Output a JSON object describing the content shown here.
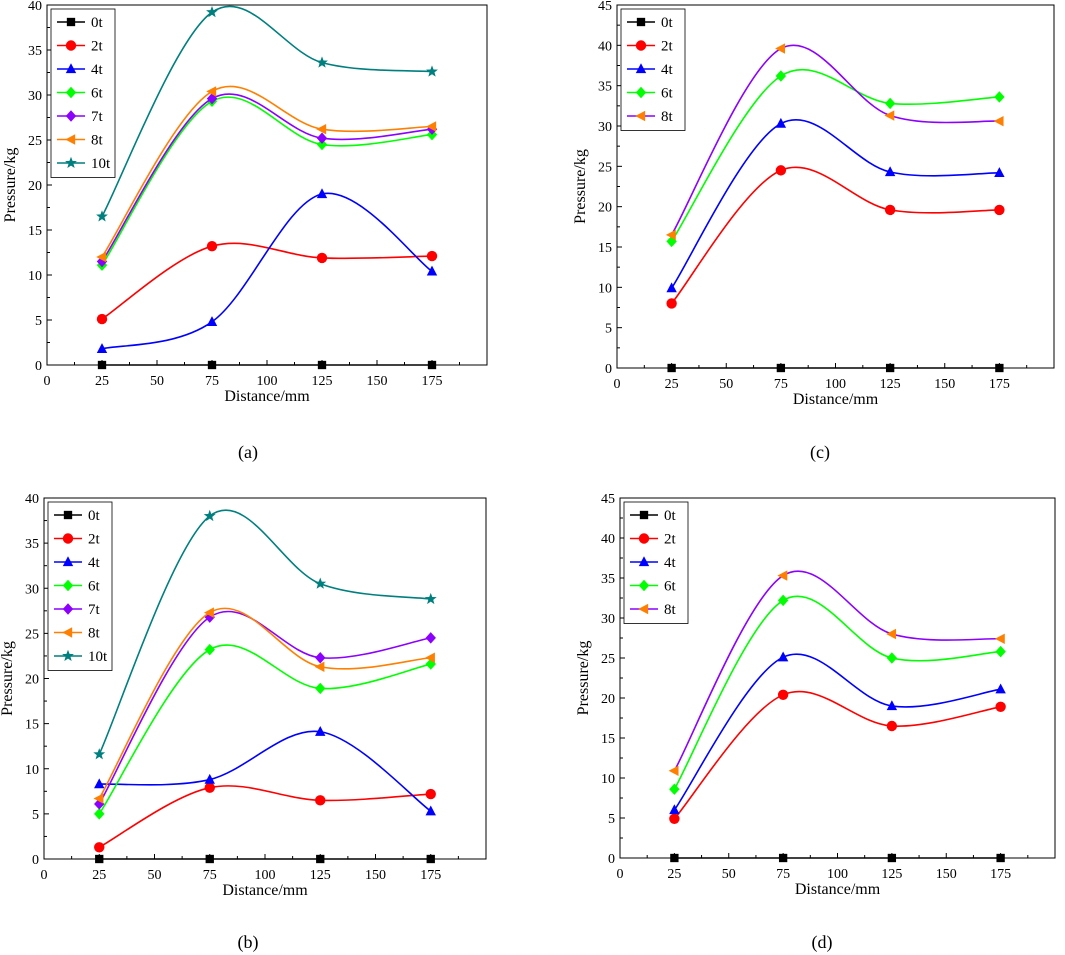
{
  "colors": {
    "0t": "#000000",
    "2t": "#ff0000",
    "4t": "#0000ff",
    "6t": "#00ff00",
    "7t": "#8b00ff",
    "8t": "#ff7f00",
    "10t": "#007f7f",
    "axis": "#000000"
  },
  "chart_data": [
    {
      "id": "a",
      "type": "line",
      "caption": "(a)",
      "xlabel": "Distance/mm",
      "ylabel": "Pressure/kg",
      "xlim": [
        0,
        200
      ],
      "ylim": [
        0,
        40
      ],
      "xticks": [
        0,
        25,
        50,
        75,
        100,
        125,
        150,
        175
      ],
      "yticks": [
        0,
        5,
        10,
        15,
        20,
        25,
        30,
        35,
        40
      ],
      "x": [
        25,
        75,
        125,
        175
      ],
      "legend_position": "top-left",
      "series": [
        {
          "name": "0t",
          "marker": "square",
          "values": [
            0,
            0,
            0,
            0
          ]
        },
        {
          "name": "2t",
          "marker": "circle",
          "values": [
            5.1,
            13.2,
            11.9,
            12.1
          ]
        },
        {
          "name": "4t",
          "marker": "triangle-up",
          "values": [
            1.8,
            4.8,
            19.0,
            10.4
          ]
        },
        {
          "name": "6t",
          "marker": "diamond",
          "values": [
            11.1,
            29.3,
            24.5,
            25.6
          ]
        },
        {
          "name": "7t",
          "marker": "diamond",
          "values": [
            11.5,
            29.6,
            25.2,
            26.2
          ]
        },
        {
          "name": "8t",
          "marker": "triangle-left",
          "values": [
            12.0,
            30.4,
            26.2,
            26.5
          ]
        },
        {
          "name": "10t",
          "marker": "star",
          "values": [
            16.5,
            39.2,
            33.6,
            32.6
          ]
        }
      ]
    },
    {
      "id": "c",
      "type": "line",
      "caption": "(c)",
      "xlabel": "Distance/mm",
      "ylabel": "Pressure/kg",
      "xlim": [
        0,
        200
      ],
      "ylim": [
        0,
        45
      ],
      "xticks": [
        0,
        25,
        50,
        75,
        100,
        125,
        150,
        175
      ],
      "yticks": [
        0,
        5,
        10,
        15,
        20,
        25,
        30,
        35,
        40,
        45
      ],
      "x": [
        25,
        75,
        125,
        175
      ],
      "legend_position": "top-left",
      "series": [
        {
          "name": "0t",
          "marker": "square",
          "values": [
            0,
            0,
            0,
            0
          ]
        },
        {
          "name": "2t",
          "marker": "circle",
          "values": [
            8.0,
            24.5,
            19.6,
            19.6
          ]
        },
        {
          "name": "4t",
          "marker": "triangle-up",
          "values": [
            9.9,
            30.3,
            24.3,
            24.2
          ]
        },
        {
          "name": "6t",
          "marker": "diamond",
          "values": [
            15.7,
            36.2,
            32.8,
            33.6
          ]
        },
        {
          "name": "8t",
          "marker": "triangle-left",
          "values": [
            16.5,
            39.6,
            31.3,
            30.6
          ],
          "line_color": "#8b00ff"
        }
      ]
    },
    {
      "id": "b",
      "type": "line",
      "caption": "(b)",
      "xlabel": "Distance/mm",
      "ylabel": "Pressure/kg",
      "xlim": [
        0,
        200
      ],
      "ylim": [
        0,
        40
      ],
      "xticks": [
        0,
        25,
        50,
        75,
        100,
        125,
        150,
        175
      ],
      "yticks": [
        0,
        5,
        10,
        15,
        20,
        25,
        30,
        35,
        40
      ],
      "x": [
        25,
        75,
        125,
        175
      ],
      "legend_position": "top-left",
      "series": [
        {
          "name": "0t",
          "marker": "square",
          "values": [
            0,
            0,
            0,
            0
          ]
        },
        {
          "name": "2t",
          "marker": "circle",
          "values": [
            1.3,
            7.9,
            6.5,
            7.2
          ]
        },
        {
          "name": "4t",
          "marker": "triangle-up",
          "values": [
            8.3,
            8.8,
            14.1,
            5.3
          ]
        },
        {
          "name": "6t",
          "marker": "diamond",
          "values": [
            5.0,
            23.2,
            18.9,
            21.6
          ]
        },
        {
          "name": "7t",
          "marker": "diamond",
          "values": [
            6.1,
            26.8,
            22.3,
            24.5
          ]
        },
        {
          "name": "8t",
          "marker": "triangle-left",
          "values": [
            6.7,
            27.3,
            21.3,
            22.3
          ]
        },
        {
          "name": "10t",
          "marker": "star",
          "values": [
            11.6,
            38.0,
            30.5,
            28.8
          ]
        }
      ]
    },
    {
      "id": "d",
      "type": "line",
      "caption": "(d)",
      "xlabel": "Distance/mm",
      "ylabel": "Pressure/kg",
      "xlim": [
        0,
        200
      ],
      "ylim": [
        0,
        45
      ],
      "xticks": [
        0,
        25,
        50,
        75,
        100,
        125,
        150,
        175
      ],
      "yticks": [
        0,
        5,
        10,
        15,
        20,
        25,
        30,
        35,
        40,
        45
      ],
      "x": [
        25,
        75,
        125,
        175
      ],
      "legend_position": "top-left",
      "series": [
        {
          "name": "0t",
          "marker": "square",
          "values": [
            0,
            0,
            0,
            0
          ]
        },
        {
          "name": "2t",
          "marker": "circle",
          "values": [
            4.9,
            20.4,
            16.5,
            18.9
          ]
        },
        {
          "name": "4t",
          "marker": "triangle-up",
          "values": [
            6.0,
            25.1,
            19.0,
            21.1
          ]
        },
        {
          "name": "6t",
          "marker": "diamond",
          "values": [
            8.6,
            32.2,
            25.0,
            25.8
          ]
        },
        {
          "name": "8t",
          "marker": "triangle-left",
          "values": [
            10.9,
            35.3,
            28.0,
            27.4
          ],
          "line_color": "#8b00ff"
        }
      ]
    }
  ]
}
